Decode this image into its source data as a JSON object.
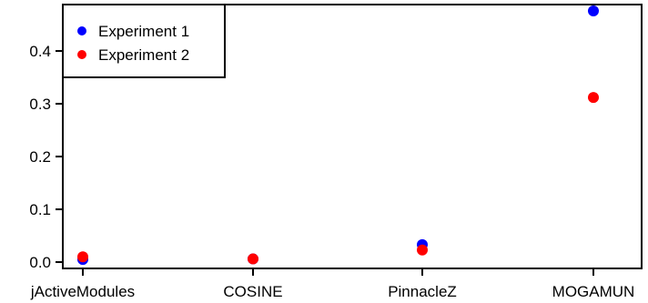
{
  "chart_data": {
    "type": "scatter",
    "categories": [
      "jActiveModules",
      "COSINE",
      "PinnacleZ",
      "MOGAMUN"
    ],
    "series": [
      {
        "name": "Experiment 1",
        "color": "#0000ff",
        "values": [
          0.005,
          0.006,
          0.033,
          0.476
        ]
      },
      {
        "name": "Experiment 2",
        "color": "#ff0000",
        "values": [
          0.01,
          0.006,
          0.023,
          0.312
        ]
      }
    ],
    "ylim": [
      -0.012,
      0.488
    ],
    "y_ticks": [
      "0.0",
      "0.1",
      "0.2",
      "0.3",
      "0.4"
    ],
    "title": "",
    "xlabel": "",
    "ylabel": "",
    "grid": false,
    "legend_position": "top-left"
  }
}
